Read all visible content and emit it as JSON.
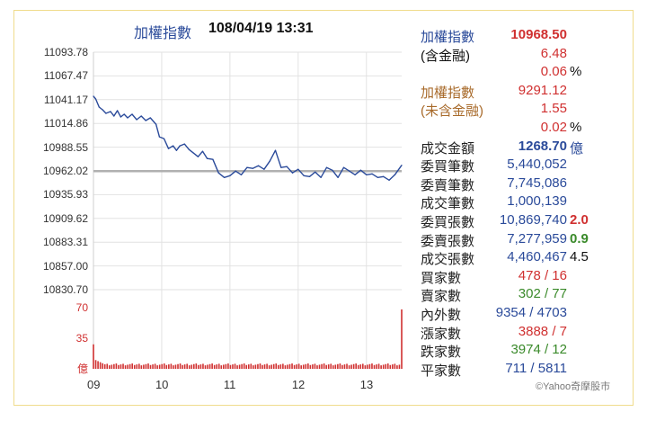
{
  "title": {
    "name": "加權指數",
    "datetime": "108/04/19 13:31"
  },
  "chart_data": {
    "type": "line",
    "x_ticks": [
      "09",
      "10",
      "11",
      "12",
      "13"
    ],
    "y_ticks": [
      "11093.78",
      "11067.47",
      "11041.17",
      "11014.86",
      "10988.55",
      "10962.02",
      "10935.93",
      "10909.62",
      "10883.31",
      "10857.00",
      "10830.70"
    ],
    "ylim": [
      10830.7,
      11093.78
    ],
    "reference": 10962.02,
    "series": [
      {
        "t": [
          0,
          2,
          5,
          8,
          11,
          15,
          18,
          21,
          24,
          27,
          30,
          34,
          38,
          42,
          46,
          50,
          55,
          58,
          62,
          66,
          70,
          73,
          76,
          80,
          84,
          88,
          92,
          96,
          100,
          105,
          110,
          115,
          120,
          125,
          130,
          135,
          140,
          145,
          150,
          155,
          160,
          165,
          170,
          175,
          180,
          185,
          190,
          195,
          200,
          205,
          210,
          215,
          220,
          225,
          230,
          235,
          240,
          245,
          250,
          255,
          260,
          265,
          271
        ],
        "values": [
          11045,
          11042,
          11033,
          11030,
          11026,
          11028,
          11023,
          11029,
          11022,
          11025,
          11021,
          11025,
          11019,
          11023,
          11018,
          11021,
          11014,
          11000,
          10998,
          10987,
          10990,
          10985,
          10990,
          10992,
          10986,
          10982,
          10978,
          10984,
          10976,
          10975,
          10960,
          10955,
          10957,
          10962,
          10958,
          10966,
          10965,
          10968,
          10964,
          10973,
          10985,
          10966,
          10967,
          10960,
          10964,
          10957,
          10956,
          10961,
          10955,
          10966,
          10963,
          10955,
          10966,
          10962,
          10958,
          10963,
          10958,
          10959,
          10955,
          10956,
          10952,
          10958,
          10968.5
        ]
      }
    ],
    "volume": {
      "y_ticks": [
        "70",
        "35",
        "億"
      ],
      "max": 70,
      "first": 28,
      "last": 68,
      "typical": 4
    }
  },
  "panel": {
    "rows": [
      {
        "label": "加權指數",
        "label_color": "blue",
        "value": "10968.50",
        "value_color": "red",
        "bold": true
      },
      {
        "label": "(含金融)",
        "label_color": "black",
        "value": "6.48",
        "value_color": "red"
      },
      {
        "label": "",
        "value": "0.06",
        "value_color": "red",
        "ext": "%",
        "ext_color": "black"
      },
      {
        "label": "加權指數",
        "label_color": "brown",
        "value": "9291.12",
        "value_color": "red"
      },
      {
        "label": "(未含金融)",
        "label_color": "brown",
        "value": "1.55",
        "value_color": "red"
      },
      {
        "label": "",
        "value": "0.02",
        "value_color": "red",
        "ext": "%",
        "ext_color": "black"
      },
      {
        "label": "成交金額",
        "label_color": "dark",
        "value": "1268.70",
        "value_color": "blue",
        "bold": true,
        "ext": "億",
        "ext_color": "blue"
      },
      {
        "label": "委買筆數",
        "label_color": "dark",
        "value": "5,440,052",
        "value_color": "blue"
      },
      {
        "label": "委賣筆數",
        "label_color": "dark",
        "value": "7,745,086",
        "value_color": "blue"
      },
      {
        "label": "成交筆數",
        "label_color": "dark",
        "value": "1,000,139",
        "value_color": "blue"
      },
      {
        "label": "委買張數",
        "label_color": "dark",
        "value": "10,869,740",
        "value_color": "blue",
        "ext": "2.0",
        "ext_color": "red",
        "ext_bold": true
      },
      {
        "label": "委賣張數",
        "label_color": "dark",
        "value": "7,277,959",
        "value_color": "blue",
        "ext": "0.9",
        "ext_color": "green",
        "ext_bold": true
      },
      {
        "label": "成交張數",
        "label_color": "dark",
        "value": "4,460,467",
        "value_color": "blue",
        "ext": "4.5",
        "ext_color": "black"
      },
      {
        "label": "買家數",
        "label_color": "dark",
        "value": "478 / 16",
        "value_color": "red"
      },
      {
        "label": "賣家數",
        "label_color": "dark",
        "value": "302 / 77",
        "value_color": "green"
      },
      {
        "label": "內外數",
        "label_color": "dark",
        "value": "9354 / 4703",
        "value_color": "blue"
      },
      {
        "label": "漲家數",
        "label_color": "dark",
        "value": "3888 / 7",
        "value_color": "red"
      },
      {
        "label": "跌家數",
        "label_color": "dark",
        "value": "3974 / 12",
        "value_color": "green"
      },
      {
        "label": "平家數",
        "label_color": "dark",
        "value": "711 / 5811",
        "value_color": "blue"
      }
    ]
  },
  "credit": "©Yahoo奇摩股市",
  "colors": {
    "line": "#2a4a9a",
    "reference": "#b0b0b0",
    "volume": "#d03030",
    "grid": "#e2e2e2",
    "frame": "#f0dc8c"
  }
}
